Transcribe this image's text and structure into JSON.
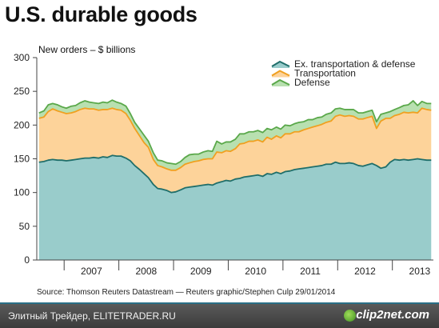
{
  "title": "U.S. durable goods",
  "source": "Source: Thomson Reuters Datastream — Reuters graphic/Stephen Culp 29/01/2014",
  "footer": {
    "text": "Элитный Трейдер, ELITETRADER.RU",
    "brand": "clip2net.com",
    "brand_icon": "clip2net-logo-icon"
  },
  "colors": {
    "ex_transport_fill": "#99cccb",
    "ex_transport_line": "#1f6e6a",
    "transport_fill": "#fdd39a",
    "transport_line": "#f0a020",
    "defense_fill": "#b8e0b0",
    "defense_line": "#5aa84a",
    "axis": "#444444"
  },
  "chart_data": {
    "type": "area",
    "stacked": true,
    "subtitle": "New orders – $ billions",
    "ylim": [
      0,
      300
    ],
    "yticks": [
      0,
      50,
      100,
      150,
      200,
      250,
      300
    ],
    "xlim": [
      2006.5,
      2013.75
    ],
    "year_labels": [
      "2007",
      "2008",
      "2009",
      "2010",
      "2011",
      "2012",
      "2013"
    ],
    "grid": false,
    "legend_position": "top-right",
    "x": [
      2006.54,
      2006.63,
      2006.71,
      2006.79,
      2006.88,
      2006.96,
      2007.04,
      2007.13,
      2007.21,
      2007.29,
      2007.38,
      2007.46,
      2007.54,
      2007.63,
      2007.71,
      2007.79,
      2007.88,
      2007.96,
      2008.04,
      2008.13,
      2008.21,
      2008.29,
      2008.38,
      2008.46,
      2008.54,
      2008.63,
      2008.71,
      2008.79,
      2008.88,
      2008.96,
      2009.04,
      2009.13,
      2009.21,
      2009.29,
      2009.38,
      2009.46,
      2009.54,
      2009.63,
      2009.71,
      2009.79,
      2009.88,
      2009.96,
      2010.04,
      2010.13,
      2010.21,
      2010.29,
      2010.38,
      2010.46,
      2010.54,
      2010.63,
      2010.71,
      2010.79,
      2010.88,
      2010.96,
      2011.04,
      2011.13,
      2011.21,
      2011.29,
      2011.38,
      2011.46,
      2011.54,
      2011.63,
      2011.71,
      2011.79,
      2011.88,
      2011.96,
      2012.04,
      2012.13,
      2012.21,
      2012.29,
      2012.38,
      2012.46,
      2012.54,
      2012.63,
      2012.71,
      2012.79,
      2012.88,
      2012.96,
      2013.04,
      2013.13,
      2013.21,
      2013.29,
      2013.38,
      2013.46,
      2013.54,
      2013.63,
      2013.71
    ],
    "series": [
      {
        "name": "Ex. transportation & defense",
        "values": [
          145,
          146,
          148,
          149,
          148,
          148,
          147,
          148,
          149,
          150,
          151,
          151,
          152,
          151,
          153,
          152,
          155,
          154,
          154,
          151,
          147,
          140,
          134,
          128,
          122,
          112,
          106,
          105,
          103,
          100,
          101,
          104,
          107,
          108,
          109,
          110,
          111,
          112,
          111,
          114,
          116,
          118,
          117,
          120,
          121,
          123,
          124,
          125,
          126,
          124,
          128,
          127,
          130,
          128,
          131,
          132,
          134,
          135,
          136,
          137,
          138,
          139,
          140,
          142,
          142,
          145,
          143,
          143,
          144,
          143,
          140,
          139,
          141,
          143,
          140,
          136,
          138,
          145,
          149,
          148,
          149,
          148,
          149,
          150,
          149,
          148,
          148
        ]
      },
      {
        "name": "Transportation",
        "values": [
          65,
          66,
          72,
          75,
          73,
          71,
          70,
          70,
          71,
          73,
          74,
          73,
          72,
          71,
          70,
          71,
          70,
          69,
          68,
          66,
          60,
          55,
          50,
          46,
          45,
          37,
          34,
          33,
          32,
          33,
          32,
          33,
          35,
          36,
          37,
          37,
          38,
          38,
          39,
          46,
          43,
          44,
          44,
          45,
          51,
          50,
          52,
          51,
          52,
          51,
          54,
          52,
          54,
          53,
          56,
          55,
          56,
          55,
          57,
          58,
          59,
          60,
          61,
          62,
          64,
          68,
          72,
          70,
          70,
          70,
          69,
          70,
          70,
          70,
          55,
          70,
          72,
          65,
          65,
          68,
          70,
          70,
          70,
          68,
          76,
          75,
          74
        ]
      },
      {
        "name": "Defense",
        "values": [
          8,
          9,
          10,
          8,
          9,
          8,
          8,
          10,
          9,
          10,
          11,
          10,
          9,
          10,
          11,
          10,
          12,
          11,
          10,
          11,
          10,
          9,
          10,
          11,
          9,
          10,
          8,
          9,
          9,
          10,
          9,
          9,
          10,
          12,
          11,
          10,
          11,
          12,
          11,
          16,
          13,
          13,
          14,
          14,
          15,
          14,
          14,
          14,
          14,
          14,
          13,
          14,
          13,
          13,
          13,
          12,
          12,
          14,
          12,
          13,
          11,
          12,
          11,
          12,
          12,
          11,
          10,
          10,
          9,
          10,
          9,
          9,
          9,
          9,
          10,
          10,
          8,
          10,
          9,
          10,
          10,
          12,
          17,
          11,
          10,
          9,
          10
        ]
      }
    ]
  }
}
